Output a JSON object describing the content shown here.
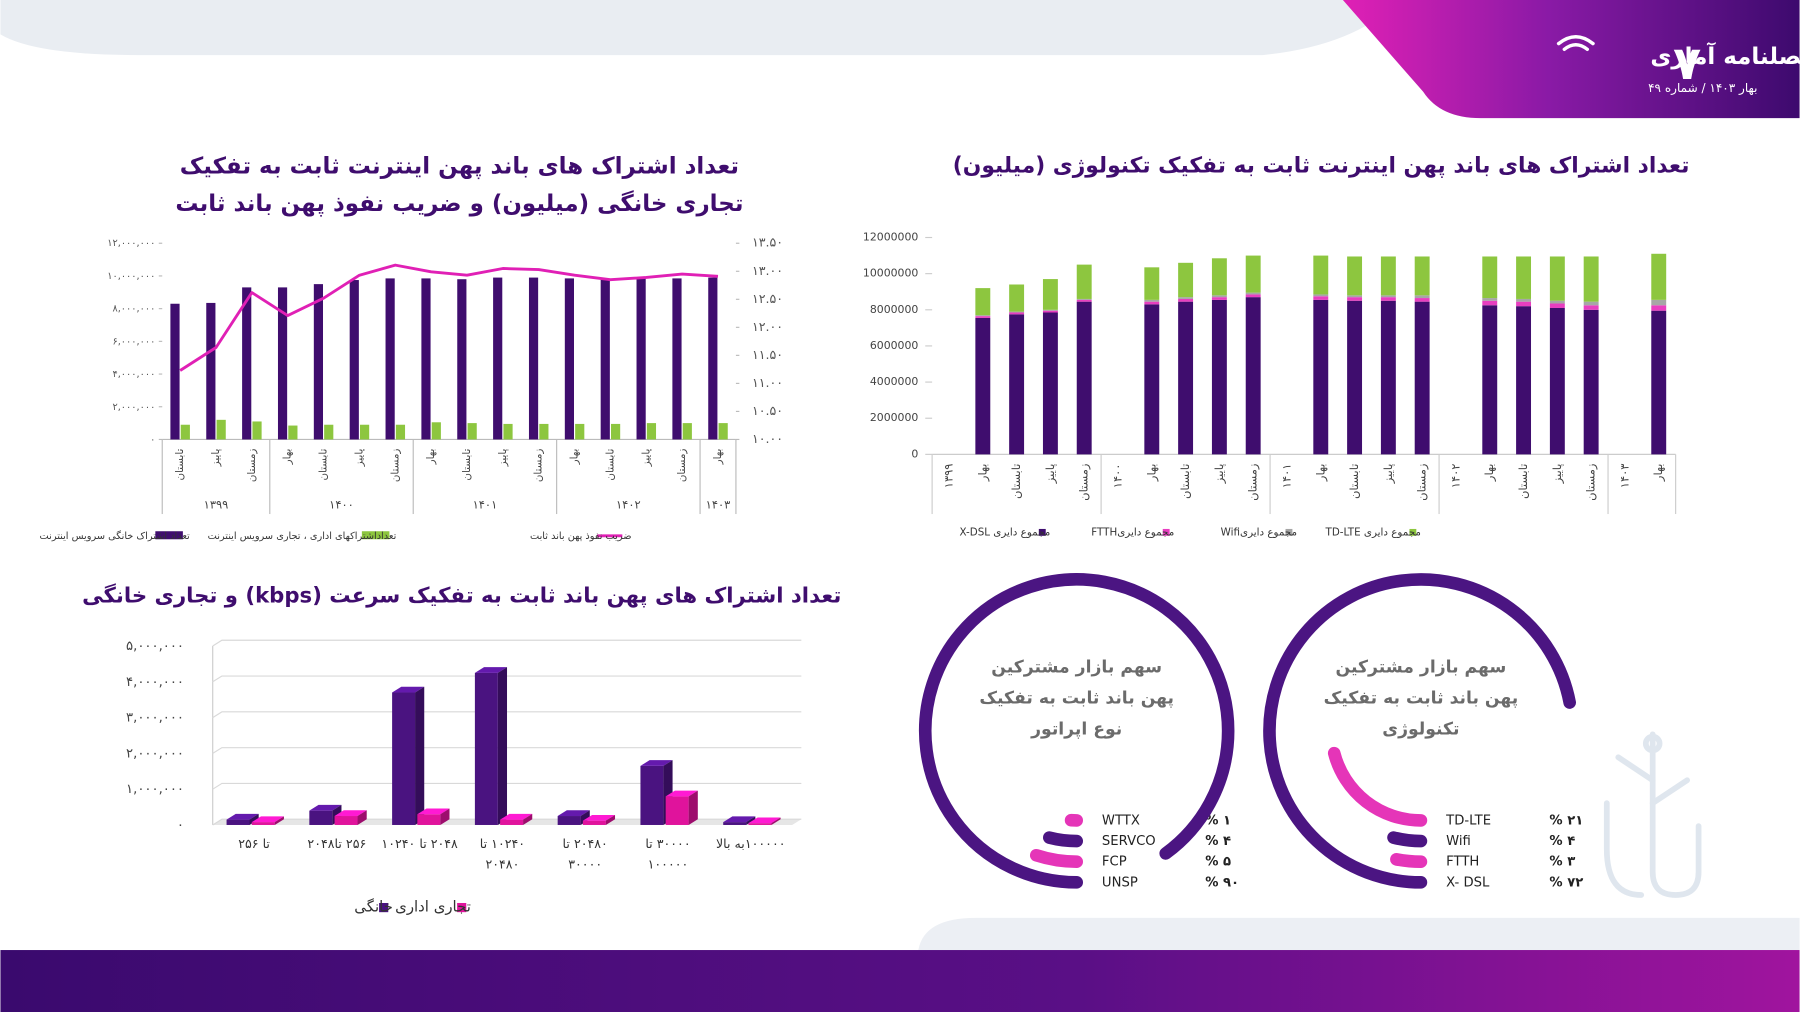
{
  "header": {
    "page_number": "۷",
    "title": "فصلنامه آماری",
    "subtitle": "بهار ۱۴۰۳ /  شماره ۴۹"
  },
  "chart_data": [
    {
      "type": "bar",
      "title": "تعداد اشتراک های باند پهن اینترنت ثابت به تفکیک تجاری خانگی (میلیون) و ضریب نفوذ پهن باند ثابت",
      "categories": [
        "تابستان",
        "پاییز",
        "زمستان",
        "بهار",
        "تابستان",
        "پاییز",
        "زمستان",
        "بهار",
        "تابستان",
        "پاییز",
        "زمستان",
        "بهار",
        "تابستان",
        "پاییز",
        "زمستان",
        "بهار"
      ],
      "x_groups": [
        "۱۳۹۹",
        null,
        null,
        "۱۴۰۰",
        null,
        null,
        null,
        "۱۴۰۱",
        null,
        null,
        null,
        "۱۴۰۲",
        null,
        null,
        null,
        "۱۴۰۳"
      ],
      "series": [
        {
          "name": "تعداد اشتراک خانگی سرویس اینترنت",
          "color": "#3f0d6e",
          "values": [
            8300000,
            8350000,
            9300000,
            9300000,
            9500000,
            9750000,
            9850000,
            9850000,
            9800000,
            9900000,
            9900000,
            9850000,
            9800000,
            9850000,
            9850000,
            9900000
          ]
        },
        {
          "name": "تعداداشتراکهای اداری ، تجاری سرویس اینترنت",
          "color": "#8dc63f",
          "values": [
            900000,
            1200000,
            1100000,
            850000,
            900000,
            900000,
            900000,
            1050000,
            1000000,
            950000,
            950000,
            950000,
            950000,
            1000000,
            1000000,
            1000000
          ]
        },
        {
          "name": "ضریب نفوذ پهن باند ثابت",
          "color": "#e020b5",
          "type": "line",
          "axis": "y2",
          "values": [
            11.23,
            11.64,
            12.62,
            12.21,
            12.52,
            12.93,
            13.11,
            12.99,
            12.93,
            13.05,
            13.03,
            12.93,
            12.85,
            12.89,
            12.95,
            12.91
          ]
        }
      ],
      "ylim": [
        0,
        12000000
      ],
      "yticks": [
        {
          "value": 0,
          "label": "۰"
        },
        {
          "value": 2000000,
          "label": "۲,۰۰۰,۰۰۰"
        },
        {
          "value": 4000000,
          "label": "۴,۰۰۰,۰۰۰"
        },
        {
          "value": 6000000,
          "label": "۶,۰۰۰,۰۰۰"
        },
        {
          "value": 8000000,
          "label": "۸,۰۰۰,۰۰۰"
        },
        {
          "value": 10000000,
          "label": "۱۰,۰۰۰,۰۰۰"
        },
        {
          "value": 12000000,
          "label": "۱۲,۰۰۰,۰۰۰"
        }
      ],
      "y2lim": [
        10,
        13.5
      ],
      "y2ticks": [
        {
          "value": 10,
          "label": "۱۰.۰۰"
        },
        {
          "value": 10.5,
          "label": "۱۰.۵۰"
        },
        {
          "value": 11,
          "label": "۱۱.۰۰"
        },
        {
          "value": 11.5,
          "label": "۱۱.۵۰"
        },
        {
          "value": 12,
          "label": "۱۲.۰۰"
        },
        {
          "value": 12.5,
          "label": "۱۲.۵۰"
        },
        {
          "value": 13,
          "label": "۱۳.۰۰"
        },
        {
          "value": 13.5,
          "label": "۱۳.۵۰"
        }
      ]
    },
    {
      "type": "stacked-bar",
      "title": "تعداد اشتراک های باند پهن اینترنت ثابت به تفکیک تکنولوژی (میلیون)",
      "categories": [
        "۱۳۹۹",
        "بهار",
        "تابستان",
        "پاییز",
        "زمستان",
        "۱۴۰۰",
        "بهار",
        "تابستان",
        "پاییز",
        "زمستان",
        "۱۴۰۱",
        "بهار",
        "تابستان",
        "پاییز",
        "زمستان",
        "۱۴۰۲",
        "بهار",
        "تابستان",
        "پاییز",
        "زمستان",
        "۱۴۰۳",
        "بهار"
      ],
      "series": [
        {
          "name": "مجموع دایری X-DSL",
          "color": "#3f0d6e",
          "values": [
            null,
            7550000,
            7750000,
            7850000,
            8450000,
            null,
            8300000,
            8450000,
            8550000,
            8700000,
            null,
            8550000,
            8500000,
            8500000,
            8450000,
            null,
            8250000,
            8200000,
            8100000,
            8000000,
            null,
            7950000
          ]
        },
        {
          "name": "مجموع دایریFTTH",
          "color": "#e83ec0",
          "values": [
            null,
            100000,
            100000,
            100000,
            100000,
            null,
            150000,
            150000,
            150000,
            150000,
            null,
            200000,
            200000,
            200000,
            200000,
            null,
            250000,
            250000,
            250000,
            250000,
            null,
            300000
          ]
        },
        {
          "name": "مجموع دایریWifi",
          "color": "#a6a6a6",
          "values": [
            null,
            50000,
            50000,
            50000,
            50000,
            null,
            100000,
            100000,
            100000,
            100000,
            null,
            100000,
            100000,
            100000,
            150000,
            null,
            150000,
            150000,
            150000,
            200000,
            null,
            300000
          ]
        },
        {
          "name": "مجموع دایری TD-LTE",
          "color": "#8dc63f",
          "values": [
            null,
            1500000,
            1500000,
            1700000,
            1900000,
            null,
            1800000,
            1900000,
            2050000,
            2050000,
            null,
            2150000,
            2150000,
            2150000,
            2150000,
            null,
            2300000,
            2350000,
            2450000,
            2500000,
            null,
            2550000
          ]
        }
      ],
      "ylim": [
        0,
        12000000
      ],
      "yticks": [
        0,
        2000000,
        4000000,
        6000000,
        8000000,
        10000000,
        12000000
      ]
    },
    {
      "type": "bar3d",
      "title": "تعداد اشتراک های پهن باند ثابت به تفکیک سرعت (kbps) و تجاری خانگی",
      "categories": [
        "تا ۲۵۶",
        "۲۵۶ تا۲۰۴۸",
        "۲۰۴۸ تا ۱۰۲۴۰",
        "۱۰۲۴۰ تا ۲۰۴۸۰",
        "۲۰۴۸۰ تا ۳۰۰۰۰",
        "۳۰۰۰۰ تا ۱۰۰۰۰۰",
        "۱۰۰۰۰۰به بالا"
      ],
      "series": [
        {
          "name": "خانگی",
          "color": "#4a1380",
          "values": [
            150000,
            400000,
            3700000,
            4250000,
            250000,
            1650000,
            80000
          ]
        },
        {
          "name": "تجاری اداری",
          "color": "#e0139c",
          "values": [
            80000,
            250000,
            300000,
            150000,
            120000,
            800000,
            50000
          ]
        }
      ],
      "ylim": [
        0,
        5000000
      ],
      "yticks": [
        {
          "value": 0,
          "label": "۰"
        },
        {
          "value": 1000000,
          "label": "۱,۰۰۰,۰۰۰"
        },
        {
          "value": 2000000,
          "label": "۲,۰۰۰,۰۰۰"
        },
        {
          "value": 3000000,
          "label": "۳,۰۰۰,۰۰۰"
        },
        {
          "value": 4000000,
          "label": "۴,۰۰۰,۰۰۰"
        },
        {
          "value": 5000000,
          "label": "۵,۰۰۰,۰۰۰"
        }
      ]
    },
    {
      "type": "radialbar",
      "title": "سهم بازار مشترکین پهن باند ثابت به تفکیک تکنولوژی",
      "categories": [
        "TD-LTE",
        "Wifi",
        "FTTH",
        "X- DSL"
      ],
      "values": [
        21,
        4,
        3,
        72
      ],
      "value_labels": [
        "۲۱ %",
        "۴ %",
        "۳ %",
        "۷۲ %"
      ],
      "colors": [
        "#e535b8",
        "#4b1582",
        "#e535b8",
        "#4b1582"
      ]
    },
    {
      "type": "radialbar",
      "title": "سهم بازار مشترکین پهن باند ثابت به تفکیک نوع اپراتور",
      "categories": [
        "WTTX",
        "SERVCO",
        "FCP",
        "UNSP"
      ],
      "values": [
        1,
        4,
        5,
        90
      ],
      "value_labels": [
        "۱ %",
        "۴ %",
        "۵ %",
        "۹۰ %"
      ],
      "colors": [
        "#e535b8",
        "#4b1582",
        "#e535b8",
        "#4b1582"
      ]
    }
  ]
}
